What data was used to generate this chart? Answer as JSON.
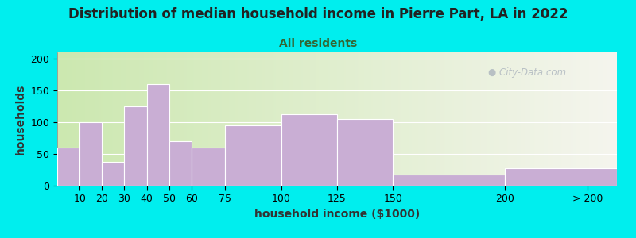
{
  "title": "Distribution of median household income in Pierre Part, LA in 2022",
  "subtitle": "All residents",
  "xlabel": "household income ($1000)",
  "ylabel": "households",
  "background_color": "#00EEEE",
  "plot_bg_left": "#cce8b0",
  "plot_bg_right": "#f5f5ee",
  "bar_color": "#c9aed4",
  "bar_edge_color": "#ffffff",
  "categories": [
    "10",
    "20",
    "30",
    "40",
    "50",
    "60",
    "75",
    "100",
    "125",
    "150",
    "200",
    "> 200"
  ],
  "bin_edges": [
    0,
    10,
    20,
    30,
    40,
    50,
    60,
    75,
    100,
    125,
    150,
    200,
    250
  ],
  "values": [
    60,
    100,
    37,
    125,
    160,
    70,
    60,
    95,
    112,
    105,
    17,
    28
  ],
  "ylim": [
    0,
    210
  ],
  "yticks": [
    0,
    50,
    100,
    150,
    200
  ],
  "title_fontsize": 12,
  "subtitle_fontsize": 10,
  "axis_label_fontsize": 10,
  "tick_fontsize": 9,
  "watermark_text": "City-Data.com",
  "watermark_color": "#b0b8c0",
  "title_color": "#222222",
  "subtitle_color": "#336633",
  "label_color": "#333333"
}
